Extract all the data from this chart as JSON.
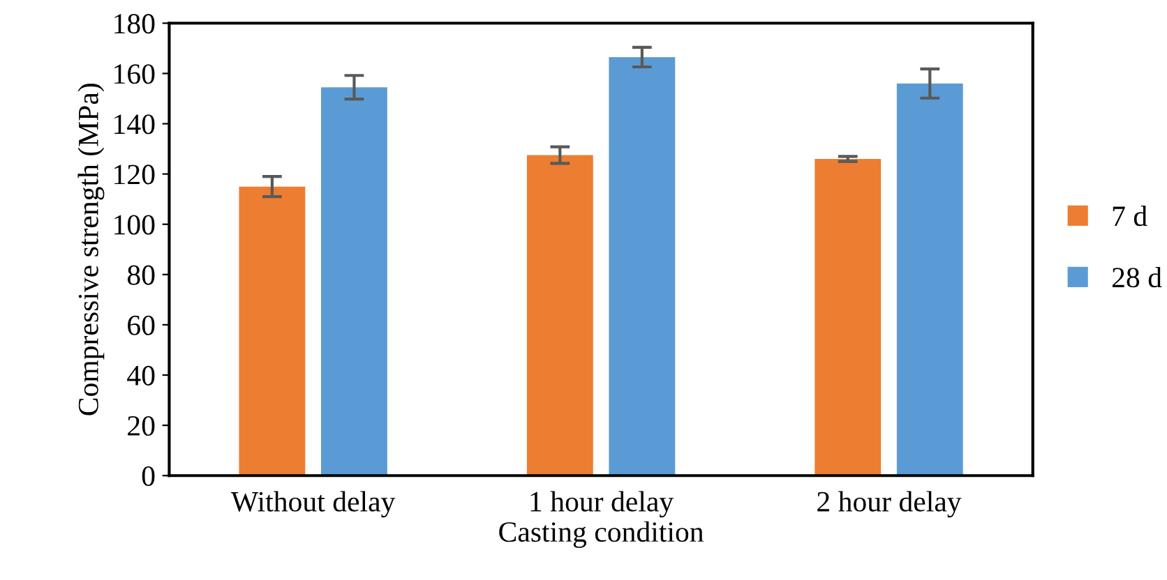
{
  "chart_data": {
    "type": "bar",
    "xlabel": "Casting condition",
    "ylabel": "Compressive strength (MPa)",
    "categories": [
      "Without delay",
      "1 hour delay",
      "2 hour delay"
    ],
    "series": [
      {
        "name": "7 d",
        "color": "#ed7d31",
        "values": [
          115,
          127.5,
          126
        ],
        "errors": [
          4,
          3.3,
          1
        ]
      },
      {
        "name": "28 d",
        "color": "#5b9bd5",
        "values": [
          154.5,
          166.5,
          156
        ],
        "errors": [
          4.7,
          3.9,
          5.8
        ]
      }
    ],
    "ylim": [
      0,
      180
    ],
    "yticks": [
      0,
      20,
      40,
      60,
      80,
      100,
      120,
      140,
      160,
      180
    ],
    "grid": false,
    "legend": "right"
  }
}
